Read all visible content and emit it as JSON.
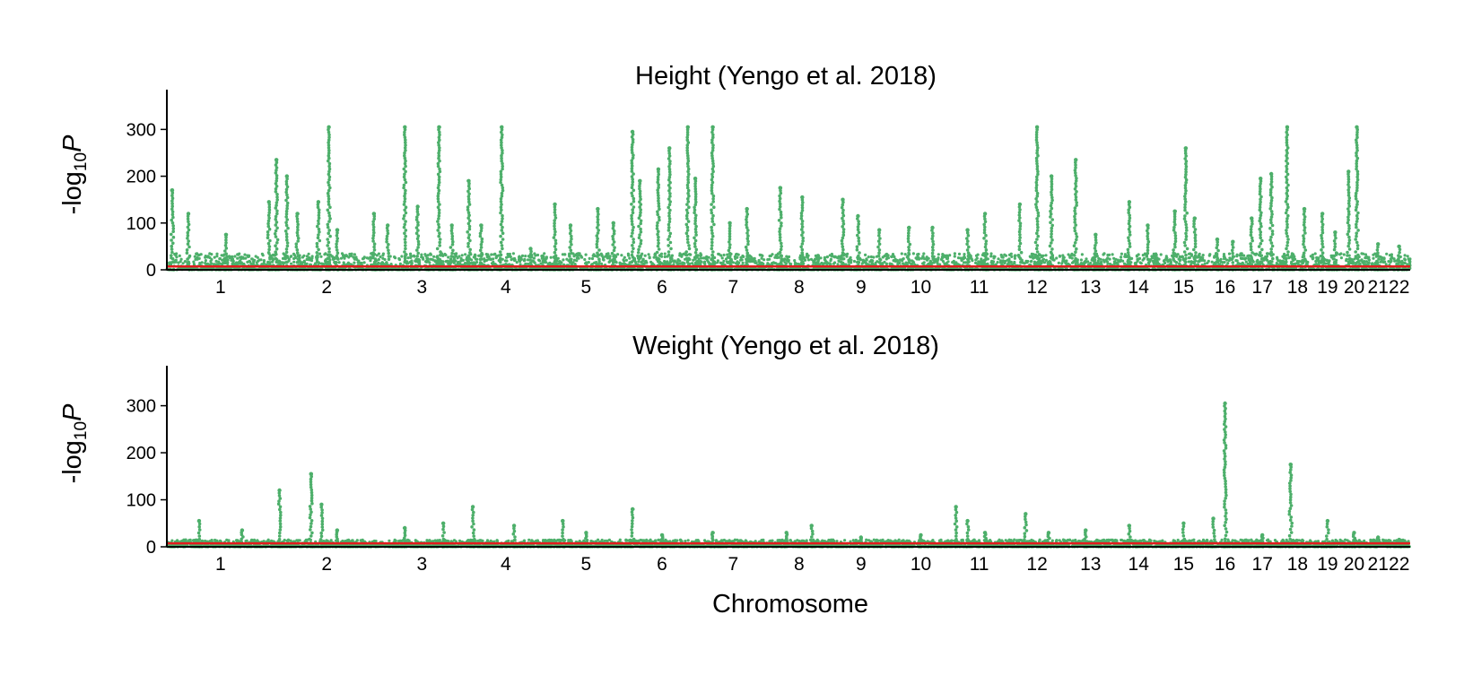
{
  "figure": {
    "xlabel": "Chromosome",
    "ylabel_prefix": "-log",
    "ylabel_sub": "10",
    "ylabel_var": "P"
  },
  "colors": {
    "points": "#4daf6a",
    "threshold": "#e41a1c",
    "axis": "#000000"
  },
  "chart_data": [
    {
      "type": "scatter",
      "title": "Height (Yengo et al. 2018)",
      "xlabel": "",
      "ylabel": "-log10P",
      "ylim": [
        0,
        385
      ],
      "yticks": [
        0,
        100,
        200,
        300
      ],
      "grid": false,
      "legend": "none",
      "chromosomes": [
        "1",
        "2",
        "3",
        "4",
        "5",
        "6",
        "7",
        "8",
        "9",
        "10",
        "11",
        "12",
        "13",
        "14",
        "15",
        "16",
        "17",
        "18",
        "19",
        "20",
        "21",
        "22"
      ],
      "chrom_lengths_mb": [
        249,
        243,
        198,
        191,
        181,
        171,
        159,
        146,
        141,
        136,
        135,
        133,
        115,
        107,
        102,
        90,
        83,
        80,
        59,
        64,
        47,
        51
      ],
      "threshold": 7.3,
      "baseline": 35,
      "peaks": [
        {
          "chrom": "1",
          "pos": 0.05,
          "value": 170
        },
        {
          "chrom": "1",
          "pos": 0.2,
          "value": 120
        },
        {
          "chrom": "1",
          "pos": 0.55,
          "value": 75
        },
        {
          "chrom": "1",
          "pos": 0.95,
          "value": 145
        },
        {
          "chrom": "2",
          "pos": 0.02,
          "value": 235
        },
        {
          "chrom": "2",
          "pos": 0.12,
          "value": 200
        },
        {
          "chrom": "2",
          "pos": 0.22,
          "value": 120
        },
        {
          "chrom": "2",
          "pos": 0.42,
          "value": 145
        },
        {
          "chrom": "2",
          "pos": 0.52,
          "value": 305
        },
        {
          "chrom": "2",
          "pos": 0.6,
          "value": 85
        },
        {
          "chrom": "2",
          "pos": 0.95,
          "value": 120
        },
        {
          "chrom": "3",
          "pos": 0.1,
          "value": 95
        },
        {
          "chrom": "3",
          "pos": 0.3,
          "value": 305
        },
        {
          "chrom": "3",
          "pos": 0.45,
          "value": 135
        },
        {
          "chrom": "3",
          "pos": 0.7,
          "value": 305
        },
        {
          "chrom": "3",
          "pos": 0.85,
          "value": 95
        },
        {
          "chrom": "4",
          "pos": 0.05,
          "value": 190
        },
        {
          "chrom": "4",
          "pos": 0.2,
          "value": 95
        },
        {
          "chrom": "4",
          "pos": 0.45,
          "value": 305
        },
        {
          "chrom": "4",
          "pos": 0.8,
          "value": 45
        },
        {
          "chrom": "5",
          "pos": 0.1,
          "value": 140
        },
        {
          "chrom": "5",
          "pos": 0.3,
          "value": 95
        },
        {
          "chrom": "5",
          "pos": 0.65,
          "value": 130
        },
        {
          "chrom": "5",
          "pos": 0.85,
          "value": 100
        },
        {
          "chrom": "6",
          "pos": 0.1,
          "value": 295
        },
        {
          "chrom": "6",
          "pos": 0.2,
          "value": 190
        },
        {
          "chrom": "6",
          "pos": 0.45,
          "value": 215
        },
        {
          "chrom": "6",
          "pos": 0.6,
          "value": 260
        },
        {
          "chrom": "6",
          "pos": 0.85,
          "value": 305
        },
        {
          "chrom": "6",
          "pos": 0.95,
          "value": 195
        },
        {
          "chrom": "7",
          "pos": 0.2,
          "value": 305
        },
        {
          "chrom": "7",
          "pos": 0.45,
          "value": 100
        },
        {
          "chrom": "7",
          "pos": 0.7,
          "value": 130
        },
        {
          "chrom": "8",
          "pos": 0.2,
          "value": 175
        },
        {
          "chrom": "8",
          "pos": 0.55,
          "value": 155
        },
        {
          "chrom": "8",
          "pos": 0.8,
          "value": 30
        },
        {
          "chrom": "9",
          "pos": 0.2,
          "value": 150
        },
        {
          "chrom": "9",
          "pos": 0.45,
          "value": 115
        },
        {
          "chrom": "9",
          "pos": 0.8,
          "value": 85
        },
        {
          "chrom": "10",
          "pos": 0.3,
          "value": 90
        },
        {
          "chrom": "10",
          "pos": 0.7,
          "value": 90
        },
        {
          "chrom": "11",
          "pos": 0.3,
          "value": 85
        },
        {
          "chrom": "11",
          "pos": 0.6,
          "value": 120
        },
        {
          "chrom": "12",
          "pos": 0.2,
          "value": 140
        },
        {
          "chrom": "12",
          "pos": 0.5,
          "value": 305
        },
        {
          "chrom": "12",
          "pos": 0.75,
          "value": 200
        },
        {
          "chrom": "13",
          "pos": 0.2,
          "value": 235
        },
        {
          "chrom": "13",
          "pos": 0.6,
          "value": 75
        },
        {
          "chrom": "14",
          "pos": 0.3,
          "value": 145
        },
        {
          "chrom": "14",
          "pos": 0.7,
          "value": 95
        },
        {
          "chrom": "15",
          "pos": 0.3,
          "value": 125
        },
        {
          "chrom": "15",
          "pos": 0.55,
          "value": 260
        },
        {
          "chrom": "15",
          "pos": 0.75,
          "value": 110
        },
        {
          "chrom": "16",
          "pos": 0.3,
          "value": 65
        },
        {
          "chrom": "16",
          "pos": 0.7,
          "value": 60
        },
        {
          "chrom": "17",
          "pos": 0.2,
          "value": 110
        },
        {
          "chrom": "17",
          "pos": 0.45,
          "value": 195
        },
        {
          "chrom": "17",
          "pos": 0.75,
          "value": 205
        },
        {
          "chrom": "18",
          "pos": 0.2,
          "value": 305
        },
        {
          "chrom": "18",
          "pos": 0.7,
          "value": 130
        },
        {
          "chrom": "19",
          "pos": 0.3,
          "value": 120
        },
        {
          "chrom": "19",
          "pos": 0.8,
          "value": 80
        },
        {
          "chrom": "20",
          "pos": 0.3,
          "value": 210
        },
        {
          "chrom": "20",
          "pos": 0.6,
          "value": 305
        },
        {
          "chrom": "21",
          "pos": 0.5,
          "value": 55
        },
        {
          "chrom": "22",
          "pos": 0.5,
          "value": 50
        }
      ]
    },
    {
      "type": "scatter",
      "title": "Weight (Yengo et al. 2018)",
      "xlabel": "Chromosome",
      "ylabel": "-log10P",
      "ylim": [
        0,
        385
      ],
      "yticks": [
        0,
        100,
        200,
        300
      ],
      "grid": false,
      "legend": "none",
      "chromosomes": [
        "1",
        "2",
        "3",
        "4",
        "5",
        "6",
        "7",
        "8",
        "9",
        "10",
        "11",
        "12",
        "13",
        "14",
        "15",
        "16",
        "17",
        "18",
        "19",
        "20",
        "21",
        "22"
      ],
      "chrom_lengths_mb": [
        249,
        243,
        198,
        191,
        181,
        171,
        159,
        146,
        141,
        136,
        135,
        133,
        115,
        107,
        102,
        90,
        83,
        80,
        59,
        64,
        47,
        51
      ],
      "threshold": 7.3,
      "baseline": 15,
      "peaks": [
        {
          "chrom": "1",
          "pos": 0.3,
          "value": 55
        },
        {
          "chrom": "1",
          "pos": 0.7,
          "value": 35
        },
        {
          "chrom": "2",
          "pos": 0.05,
          "value": 120
        },
        {
          "chrom": "2",
          "pos": 0.35,
          "value": 155
        },
        {
          "chrom": "2",
          "pos": 0.45,
          "value": 90
        },
        {
          "chrom": "2",
          "pos": 0.6,
          "value": 35
        },
        {
          "chrom": "3",
          "pos": 0.3,
          "value": 40
        },
        {
          "chrom": "3",
          "pos": 0.75,
          "value": 50
        },
        {
          "chrom": "4",
          "pos": 0.1,
          "value": 85
        },
        {
          "chrom": "4",
          "pos": 0.6,
          "value": 45
        },
        {
          "chrom": "5",
          "pos": 0.2,
          "value": 55
        },
        {
          "chrom": "5",
          "pos": 0.5,
          "value": 30
        },
        {
          "chrom": "6",
          "pos": 0.1,
          "value": 80
        },
        {
          "chrom": "6",
          "pos": 0.5,
          "value": 25
        },
        {
          "chrom": "7",
          "pos": 0.2,
          "value": 30
        },
        {
          "chrom": "8",
          "pos": 0.3,
          "value": 30
        },
        {
          "chrom": "8",
          "pos": 0.7,
          "value": 45
        },
        {
          "chrom": "9",
          "pos": 0.5,
          "value": 20
        },
        {
          "chrom": "10",
          "pos": 0.5,
          "value": 25
        },
        {
          "chrom": "11",
          "pos": 0.1,
          "value": 85
        },
        {
          "chrom": "11",
          "pos": 0.3,
          "value": 55
        },
        {
          "chrom": "11",
          "pos": 0.6,
          "value": 30
        },
        {
          "chrom": "12",
          "pos": 0.3,
          "value": 70
        },
        {
          "chrom": "12",
          "pos": 0.7,
          "value": 30
        },
        {
          "chrom": "13",
          "pos": 0.4,
          "value": 35
        },
        {
          "chrom": "14",
          "pos": 0.3,
          "value": 45
        },
        {
          "chrom": "15",
          "pos": 0.5,
          "value": 50
        },
        {
          "chrom": "16",
          "pos": 0.2,
          "value": 60
        },
        {
          "chrom": "16",
          "pos": 0.5,
          "value": 305
        },
        {
          "chrom": "17",
          "pos": 0.5,
          "value": 25
        },
        {
          "chrom": "18",
          "pos": 0.3,
          "value": 175
        },
        {
          "chrom": "19",
          "pos": 0.5,
          "value": 55
        },
        {
          "chrom": "20",
          "pos": 0.5,
          "value": 30
        },
        {
          "chrom": "21",
          "pos": 0.5,
          "value": 20
        },
        {
          "chrom": "22",
          "pos": 0.5,
          "value": 15
        }
      ]
    }
  ]
}
